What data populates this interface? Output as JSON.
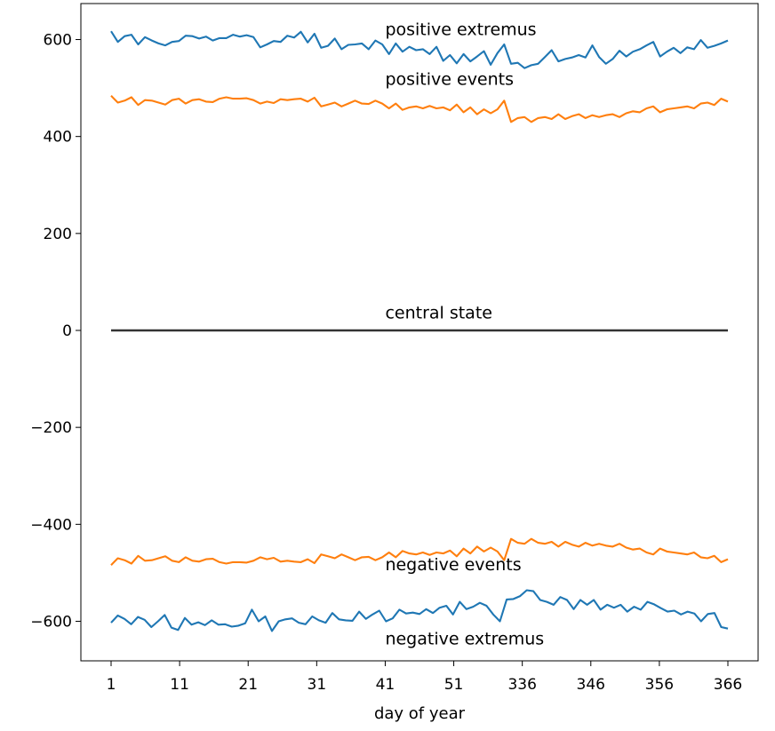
{
  "chart_data": {
    "type": "line",
    "xlabel": "day of year",
    "ylabel": "",
    "ylim": [
      -680,
      680
    ],
    "x_tick_labels": [
      "1",
      "11",
      "21",
      "31",
      "41",
      "51",
      "336",
      "346",
      "356",
      "366"
    ],
    "y_ticks": [
      600,
      400,
      200,
      0,
      -200,
      -400,
      -600
    ],
    "y_tick_labels": [
      "600",
      "400",
      "200",
      "0",
      "−200",
      "−400",
      "−600"
    ],
    "grid": false,
    "colors": {
      "extremus": "#1f77b4",
      "events": "#ff7f0e",
      "central": "#333333"
    },
    "annotations": [
      {
        "text": "positive extremus",
        "x_tick": 4,
        "y": 622
      },
      {
        "text": "positive events",
        "x_tick": 4,
        "y": 519
      },
      {
        "text": "central state",
        "x_tick": 4,
        "y": 38
      },
      {
        "text": "negative events",
        "x_tick": 4,
        "y": -482
      },
      {
        "text": "negative extremus",
        "x_tick": 4,
        "y": -635
      }
    ],
    "series": [
      {
        "key": "positive_extremus",
        "color": "#1f77b4",
        "values": [
          617,
          595,
          607,
          610,
          590,
          605,
          598,
          592,
          588,
          595,
          597,
          608,
          607,
          602,
          606,
          598,
          603,
          603,
          610,
          606,
          609,
          605,
          584,
          590,
          597,
          595,
          608,
          604,
          616,
          594,
          612,
          583,
          587,
          602,
          580,
          589,
          590,
          592,
          580,
          598,
          590,
          570,
          592,
          575,
          585,
          578,
          580,
          570,
          585,
          556,
          568,
          551,
          570,
          555,
          565,
          576,
          548,
          572,
          590,
          550,
          552,
          541,
          547,
          550,
          564,
          578,
          555,
          560,
          563,
          568,
          563,
          588,
          564,
          550,
          560,
          577,
          565,
          575,
          580,
          588,
          595,
          565,
          575,
          583,
          572,
          584,
          580,
          599,
          583,
          587,
          592,
          598
        ]
      },
      {
        "key": "positive_events",
        "color": "#ff7f0e",
        "values": [
          484,
          470,
          474,
          481,
          465,
          475,
          474,
          470,
          466,
          475,
          478,
          468,
          475,
          477,
          472,
          471,
          478,
          481,
          478,
          478,
          479,
          475,
          468,
          472,
          469,
          477,
          475,
          477,
          478,
          472,
          480,
          462,
          466,
          470,
          462,
          468,
          474,
          468,
          467,
          474,
          468,
          458,
          468,
          455,
          460,
          462,
          458,
          463,
          458,
          460,
          454,
          466,
          450,
          460,
          446,
          456,
          448,
          456,
          474,
          430,
          438,
          440,
          430,
          438,
          440,
          436,
          446,
          436,
          442,
          446,
          438,
          444,
          440,
          444,
          446,
          440,
          448,
          452,
          450,
          458,
          462,
          450,
          456,
          458,
          460,
          462,
          458,
          468,
          470,
          465,
          478,
          472
        ]
      },
      {
        "key": "central_state",
        "color": "#333333",
        "values": [
          0,
          0
        ]
      },
      {
        "key": "negative_events",
        "color": "#ff7f0e",
        "values": [
          -484,
          -470,
          -474,
          -481,
          -465,
          -475,
          -474,
          -470,
          -466,
          -475,
          -478,
          -468,
          -475,
          -477,
          -472,
          -471,
          -478,
          -481,
          -478,
          -478,
          -479,
          -475,
          -468,
          -472,
          -469,
          -477,
          -475,
          -477,
          -478,
          -472,
          -480,
          -462,
          -466,
          -470,
          -462,
          -468,
          -474,
          -468,
          -467,
          -474,
          -468,
          -458,
          -468,
          -455,
          -460,
          -462,
          -458,
          -463,
          -458,
          -460,
          -454,
          -466,
          -450,
          -460,
          -446,
          -456,
          -448,
          -456,
          -474,
          -430,
          -438,
          -440,
          -430,
          -438,
          -440,
          -436,
          -446,
          -436,
          -442,
          -446,
          -438,
          -444,
          -440,
          -444,
          -446,
          -440,
          -448,
          -452,
          -450,
          -458,
          -462,
          -450,
          -456,
          -458,
          -460,
          -462,
          -458,
          -468,
          -470,
          -465,
          -478,
          -472
        ]
      },
      {
        "key": "negative_extremus",
        "color": "#1f77b4",
        "values": [
          -603,
          -588,
          -595,
          -606,
          -591,
          -597,
          -612,
          -600,
          -587,
          -613,
          -618,
          -593,
          -607,
          -602,
          -608,
          -598,
          -607,
          -606,
          -611,
          -609,
          -604,
          -576,
          -600,
          -590,
          -620,
          -600,
          -596,
          -594,
          -603,
          -606,
          -590,
          -598,
          -603,
          -583,
          -596,
          -598,
          -599,
          -580,
          -595,
          -586,
          -578,
          -600,
          -594,
          -576,
          -584,
          -582,
          -585,
          -575,
          -583,
          -572,
          -568,
          -586,
          -560,
          -575,
          -570,
          -562,
          -568,
          -586,
          -600,
          -555,
          -554,
          -548,
          -536,
          -538,
          -556,
          -560,
          -566,
          -550,
          -556,
          -575,
          -556,
          -566,
          -556,
          -576,
          -566,
          -572,
          -566,
          -580,
          -570,
          -576,
          -560,
          -565,
          -573,
          -580,
          -578,
          -586,
          -580,
          -584,
          -600,
          -585,
          -583,
          -612,
          -615
        ]
      }
    ]
  }
}
